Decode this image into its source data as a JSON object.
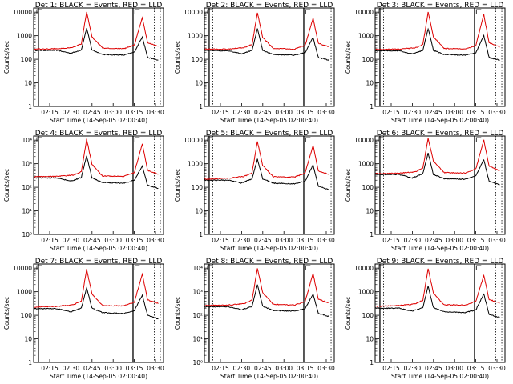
{
  "figure": {
    "xlabel": "Start Time (14-Sep-05 02:00:40)",
    "ylabel": "Counts/sec",
    "title_suffix": "BLACK = Events, RED = LLD",
    "x_ticks": [
      "02:15",
      "02:30",
      "02:45",
      "03:00",
      "03:15",
      "03:30"
    ],
    "colors": {
      "events": "#000000",
      "lld": "#dd0000",
      "axes": "#000000",
      "background": "#ffffff"
    }
  },
  "chart_data": [
    {
      "type": "line",
      "detector": "Det 1",
      "title": "Det 1: BLACK = Events, RED = LLD",
      "ylim": [
        1,
        15000
      ],
      "yscale": "log",
      "y_tick_style": "plain",
      "y_ticks": [
        "1",
        "10",
        "100",
        "1000",
        "10000"
      ],
      "series": [
        {
          "name": "Events",
          "keypoints": [
            [
              0,
              240
            ],
            [
              9,
              240
            ],
            [
              14,
              180
            ],
            [
              18,
              250
            ],
            [
              20,
              2100
            ],
            [
              22,
              250
            ],
            [
              26,
              160
            ],
            [
              34,
              150
            ],
            [
              38,
              200
            ],
            [
              41,
              900
            ],
            [
              43,
              120
            ],
            [
              47,
              90
            ]
          ]
        },
        {
          "name": "LLD",
          "keypoints": [
            [
              0,
              270
            ],
            [
              9,
              280
            ],
            [
              15,
              320
            ],
            [
              18,
              450
            ],
            [
              20,
              10500
            ],
            [
              22,
              900
            ],
            [
              26,
              300
            ],
            [
              34,
              280
            ],
            [
              38,
              400
            ],
            [
              41,
              6000
            ],
            [
              43,
              500
            ],
            [
              47,
              350
            ]
          ]
        }
      ]
    },
    {
      "type": "line",
      "detector": "Det 2",
      "title": "Det 2: BLACK = Events, RED = LLD",
      "ylim": [
        1,
        15000
      ],
      "yscale": "log",
      "y_tick_style": "plain",
      "y_ticks": [
        "1",
        "10",
        "100",
        "1000",
        "10000"
      ],
      "series": [
        {
          "name": "Events",
          "keypoints": [
            [
              0,
              240
            ],
            [
              9,
              230
            ],
            [
              14,
              170
            ],
            [
              18,
              240
            ],
            [
              20,
              2000
            ],
            [
              22,
              240
            ],
            [
              26,
              160
            ],
            [
              34,
              150
            ],
            [
              38,
              190
            ],
            [
              41,
              850
            ],
            [
              43,
              120
            ],
            [
              47,
              90
            ]
          ]
        },
        {
          "name": "LLD",
          "keypoints": [
            [
              0,
              270
            ],
            [
              9,
              270
            ],
            [
              15,
              310
            ],
            [
              18,
              430
            ],
            [
              20,
              9500
            ],
            [
              22,
              850
            ],
            [
              26,
              290
            ],
            [
              34,
              270
            ],
            [
              38,
              380
            ],
            [
              41,
              5500
            ],
            [
              43,
              480
            ],
            [
              47,
              330
            ]
          ]
        }
      ]
    },
    {
      "type": "line",
      "detector": "Det 3",
      "title": "Det 3: BLACK = Events, RED = LLD",
      "ylim": [
        1,
        15000
      ],
      "yscale": "log",
      "y_tick_style": "plain",
      "y_ticks": [
        "1",
        "10",
        "100",
        "1000",
        "10000"
      ],
      "series": [
        {
          "name": "Events",
          "keypoints": [
            [
              0,
              230
            ],
            [
              9,
              230
            ],
            [
              14,
              170
            ],
            [
              18,
              240
            ],
            [
              20,
              2000
            ],
            [
              22,
              240
            ],
            [
              26,
              160
            ],
            [
              34,
              150
            ],
            [
              38,
              190
            ],
            [
              41,
              1000
            ],
            [
              43,
              120
            ],
            [
              47,
              90
            ]
          ]
        },
        {
          "name": "LLD",
          "keypoints": [
            [
              0,
              260
            ],
            [
              9,
              270
            ],
            [
              15,
              300
            ],
            [
              18,
              420
            ],
            [
              20,
              10000
            ],
            [
              22,
              900
            ],
            [
              26,
              290
            ],
            [
              34,
              270
            ],
            [
              38,
              380
            ],
            [
              41,
              8000
            ],
            [
              43,
              500
            ],
            [
              47,
              340
            ]
          ]
        }
      ]
    },
    {
      "type": "line",
      "detector": "Det 4",
      "title": "Det 4: BLACK = Events, RED = LLD",
      "ylim": [
        1,
        15000
      ],
      "yscale": "log",
      "y_tick_style": "exp",
      "y_ticks": [
        "10⁰",
        "10¹",
        "10²",
        "10³",
        "10⁴"
      ],
      "series": [
        {
          "name": "Events",
          "keypoints": [
            [
              0,
              250
            ],
            [
              9,
              250
            ],
            [
              14,
              180
            ],
            [
              18,
              260
            ],
            [
              20,
              2200
            ],
            [
              22,
              250
            ],
            [
              26,
              160
            ],
            [
              34,
              150
            ],
            [
              38,
              200
            ],
            [
              41,
              800
            ],
            [
              43,
              120
            ],
            [
              47,
              90
            ]
          ]
        },
        {
          "name": "LLD",
          "keypoints": [
            [
              0,
              280
            ],
            [
              9,
              290
            ],
            [
              15,
              330
            ],
            [
              18,
              460
            ],
            [
              20,
              11000
            ],
            [
              22,
              950
            ],
            [
              26,
              300
            ],
            [
              34,
              290
            ],
            [
              38,
              420
            ],
            [
              41,
              7000
            ],
            [
              43,
              520
            ],
            [
              47,
              360
            ]
          ]
        }
      ]
    },
    {
      "type": "line",
      "detector": "Det 5",
      "title": "Det 5: BLACK = Events, RED = LLD",
      "ylim": [
        1,
        15000
      ],
      "yscale": "log",
      "y_tick_style": "plain",
      "y_ticks": [
        "1",
        "10",
        "100",
        "1000",
        "10000"
      ],
      "series": [
        {
          "name": "Events",
          "keypoints": [
            [
              0,
              200
            ],
            [
              9,
              200
            ],
            [
              14,
              150
            ],
            [
              18,
              230
            ],
            [
              20,
              1600
            ],
            [
              22,
              230
            ],
            [
              26,
              150
            ],
            [
              34,
              140
            ],
            [
              38,
              180
            ],
            [
              41,
              900
            ],
            [
              43,
              110
            ],
            [
              47,
              80
            ]
          ]
        },
        {
          "name": "LLD",
          "keypoints": [
            [
              0,
              220
            ],
            [
              9,
              240
            ],
            [
              15,
              290
            ],
            [
              18,
              420
            ],
            [
              20,
              9000
            ],
            [
              22,
              850
            ],
            [
              26,
              280
            ],
            [
              34,
              270
            ],
            [
              38,
              400
            ],
            [
              41,
              6000
            ],
            [
              43,
              500
            ],
            [
              47,
              350
            ]
          ]
        }
      ]
    },
    {
      "type": "line",
      "detector": "Det 6",
      "title": "Det 6: BLACK = Events, RED = LLD",
      "ylim": [
        1,
        15000
      ],
      "yscale": "log",
      "y_tick_style": "plain",
      "y_ticks": [
        "1",
        "10",
        "100",
        "1000",
        "10000"
      ],
      "series": [
        {
          "name": "Events",
          "keypoints": [
            [
              0,
              350
            ],
            [
              9,
              350
            ],
            [
              14,
              250
            ],
            [
              18,
              380
            ],
            [
              20,
              2800
            ],
            [
              22,
              350
            ],
            [
              26,
              230
            ],
            [
              34,
              220
            ],
            [
              38,
              300
            ],
            [
              41,
              1500
            ],
            [
              43,
              180
            ],
            [
              47,
              130
            ]
          ]
        },
        {
          "name": "LLD",
          "keypoints": [
            [
              0,
              380
            ],
            [
              9,
              400
            ],
            [
              15,
              450
            ],
            [
              18,
              650
            ],
            [
              20,
              12000
            ],
            [
              22,
              1300
            ],
            [
              26,
              420
            ],
            [
              34,
              400
            ],
            [
              38,
              600
            ],
            [
              41,
              10000
            ],
            [
              43,
              800
            ],
            [
              47,
              500
            ]
          ]
        }
      ]
    },
    {
      "type": "line",
      "detector": "Det 7",
      "title": "Det 7: BLACK = Events, RED = LLD",
      "ylim": [
        1,
        15000
      ],
      "yscale": "log",
      "y_tick_style": "plain",
      "y_ticks": [
        "1",
        "10",
        "100",
        "1000",
        "10000"
      ],
      "series": [
        {
          "name": "Events",
          "keypoints": [
            [
              0,
              190
            ],
            [
              9,
              190
            ],
            [
              14,
              140
            ],
            [
              18,
              200
            ],
            [
              20,
              1500
            ],
            [
              22,
              200
            ],
            [
              26,
              130
            ],
            [
              34,
              120
            ],
            [
              38,
              160
            ],
            [
              41,
              700
            ],
            [
              43,
              100
            ],
            [
              47,
              70
            ]
          ]
        },
        {
          "name": "LLD",
          "keypoints": [
            [
              0,
              220
            ],
            [
              9,
              240
            ],
            [
              15,
              280
            ],
            [
              18,
              400
            ],
            [
              20,
              9000
            ],
            [
              22,
              800
            ],
            [
              26,
              260
            ],
            [
              34,
              250
            ],
            [
              38,
              360
            ],
            [
              41,
              5500
            ],
            [
              43,
              450
            ],
            [
              47,
              320
            ]
          ]
        }
      ]
    },
    {
      "type": "line",
      "detector": "Det 8",
      "title": "Det 8: BLACK = Events, RED = LLD",
      "ylim": [
        1,
        15000
      ],
      "yscale": "log",
      "y_tick_style": "exp",
      "y_ticks": [
        "10⁰",
        "10¹",
        "10²",
        "10³",
        "10⁴"
      ],
      "series": [
        {
          "name": "Events",
          "keypoints": [
            [
              0,
              230
            ],
            [
              9,
              230
            ],
            [
              14,
              170
            ],
            [
              18,
              240
            ],
            [
              20,
              2000
            ],
            [
              22,
              240
            ],
            [
              26,
              160
            ],
            [
              34,
              150
            ],
            [
              38,
              190
            ],
            [
              41,
              800
            ],
            [
              43,
              120
            ],
            [
              47,
              90
            ]
          ]
        },
        {
          "name": "LLD",
          "keypoints": [
            [
              0,
              260
            ],
            [
              9,
              270
            ],
            [
              15,
              310
            ],
            [
              18,
              440
            ],
            [
              20,
              10000
            ],
            [
              22,
              900
            ],
            [
              26,
              290
            ],
            [
              34,
              270
            ],
            [
              38,
              380
            ],
            [
              41,
              6000
            ],
            [
              43,
              480
            ],
            [
              47,
              340
            ]
          ]
        }
      ]
    },
    {
      "type": "line",
      "detector": "Det 9",
      "title": "Det 9: BLACK = Events, RED = LLD",
      "ylim": [
        1,
        15000
      ],
      "yscale": "log",
      "y_tick_style": "plain",
      "y_ticks": [
        "1",
        "10",
        "100",
        "1000",
        "10000"
      ],
      "series": [
        {
          "name": "Events",
          "keypoints": [
            [
              0,
              200
            ],
            [
              9,
              200
            ],
            [
              14,
              150
            ],
            [
              18,
              210
            ],
            [
              20,
              1700
            ],
            [
              22,
              210
            ],
            [
              26,
              140
            ],
            [
              34,
              130
            ],
            [
              38,
              170
            ],
            [
              41,
              800
            ],
            [
              43,
              110
            ],
            [
              47,
              80
            ]
          ]
        },
        {
          "name": "LLD",
          "keypoints": [
            [
              0,
              240
            ],
            [
              9,
              260
            ],
            [
              15,
              300
            ],
            [
              18,
              430
            ],
            [
              20,
              9500
            ],
            [
              22,
              850
            ],
            [
              26,
              280
            ],
            [
              34,
              270
            ],
            [
              38,
              390
            ],
            [
              41,
              5000
            ],
            [
              43,
              470
            ],
            [
              47,
              330
            ]
          ]
        }
      ]
    }
  ]
}
